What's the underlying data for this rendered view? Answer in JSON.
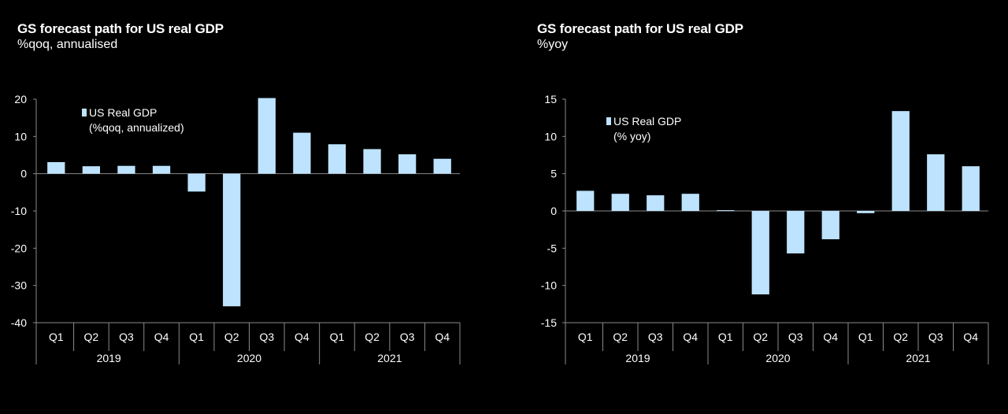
{
  "chart_data": [
    {
      "type": "bar",
      "title": "GS forecast path for US real GDP",
      "subtitle": "%qoq, annualised",
      "categories": [
        "Q1",
        "Q2",
        "Q3",
        "Q4",
        "Q1",
        "Q2",
        "Q3",
        "Q4",
        "Q1",
        "Q2",
        "Q3",
        "Q4"
      ],
      "years": [
        "2019",
        "2020",
        "2021"
      ],
      "series": [
        {
          "name": "US Real GDP",
          "name_line2": "(%qoq, annualized)",
          "values": [
            3.1,
            2.0,
            2.1,
            2.1,
            -4.8,
            -35.6,
            20.3,
            11.0,
            7.9,
            6.6,
            5.2,
            4.0
          ]
        }
      ],
      "ylim": [
        -40,
        20
      ],
      "yticks": [
        "20",
        "10",
        "0",
        "-10",
        "-20",
        "-30",
        "-40"
      ],
      "ytick_values": [
        20,
        10,
        0,
        -10,
        -20,
        -30,
        -40
      ],
      "bar_color": "#BDE3FF",
      "legend_placement": "top-left",
      "grid": false
    },
    {
      "type": "bar",
      "title": "GS forecast path for US real GDP",
      "subtitle": "%yoy",
      "categories": [
        "Q1",
        "Q2",
        "Q3",
        "Q4",
        "Q1",
        "Q2",
        "Q3",
        "Q4",
        "Q1",
        "Q2",
        "Q3",
        "Q4"
      ],
      "years": [
        "2019",
        "2020",
        "2021"
      ],
      "series": [
        {
          "name": "US Real GDP",
          "name_line2": "(% yoy)",
          "values": [
            2.7,
            2.3,
            2.1,
            2.3,
            0.1,
            -11.2,
            -5.7,
            -3.8,
            -0.3,
            13.4,
            7.6,
            6.0
          ]
        }
      ],
      "ylim": [
        -15,
        15
      ],
      "yticks": [
        "15",
        "10",
        "5",
        "0",
        "-5",
        "-10",
        "-15"
      ],
      "ytick_values": [
        15,
        10,
        5,
        0,
        -5,
        -10,
        -15
      ],
      "bar_color": "#BDE3FF",
      "legend_placement": "top-left",
      "grid": false
    }
  ]
}
